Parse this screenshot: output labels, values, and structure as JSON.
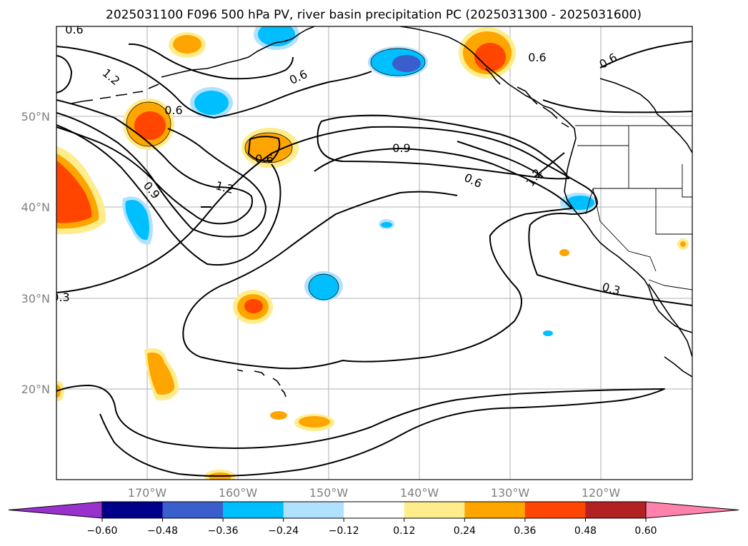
{
  "title": "2025031100 F096 500 hPa PV, river basin precipitation PC (2025031300 - 2025031600)",
  "map": {
    "lon_range": [
      -180,
      -110
    ],
    "lat_range": [
      10,
      60
    ],
    "lat_labels": [
      "50°N",
      "40°N",
      "30°N",
      "20°N"
    ],
    "lon_labels": [
      "170°W",
      "160°W",
      "150°W",
      "140°W",
      "130°W",
      "120°W"
    ],
    "gridlines": true
  },
  "contour_labels": [
    "0.6",
    "1.2",
    "0.6",
    "0.6",
    "0.6",
    "0.6",
    "0.9",
    "1.2",
    "0.6",
    "0.9",
    "1.2",
    "0.6",
    "0.3",
    "0.3",
    "0.6"
  ],
  "colorbar": {
    "ticks": [
      "−0.60",
      "−0.48",
      "−0.36",
      "−0.24",
      "−0.12",
      "0.12",
      "0.24",
      "0.36",
      "0.48",
      "0.60"
    ],
    "colors": [
      "#9932cc",
      "#00008b",
      "#3a5fcd",
      "#00bfff",
      "#b0e2ff",
      "#ffffff",
      "#ffec8b",
      "#ffa500",
      "#ff4500",
      "#b22222",
      "#ff82ab"
    ],
    "extend": "both"
  }
}
